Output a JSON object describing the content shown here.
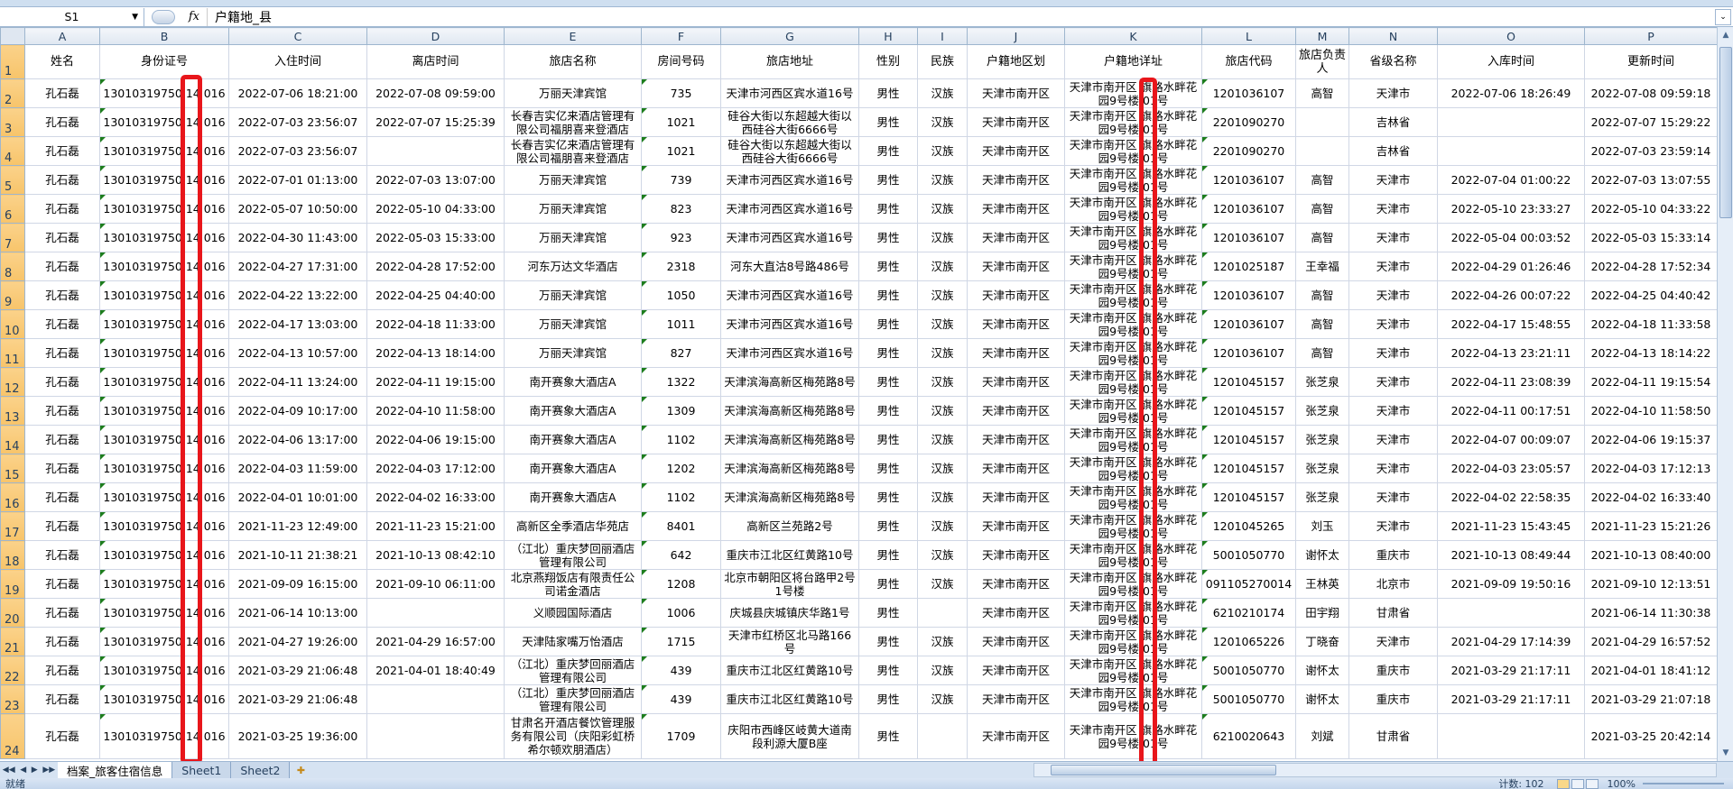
{
  "formula_bar": {
    "name_box": "S1",
    "fx_label": "fx",
    "content": "户籍地_县"
  },
  "columns": [
    "A",
    "B",
    "C",
    "D",
    "E",
    "F",
    "G",
    "H",
    "I",
    "J",
    "K",
    "L",
    "M",
    "N",
    "O",
    "P"
  ],
  "header_row": {
    "row_number": "1",
    "cells": [
      "姓名",
      "身份证号",
      "入住时间",
      "离店时间",
      "旅店名称",
      "房间号码",
      "旅店地址",
      "性别",
      "民族",
      "户籍地区划",
      "户籍地详址",
      "旅店代码",
      "旅店负责人",
      "省级名称",
      "入库时间",
      "更新时间"
    ]
  },
  "rows": [
    [
      "2",
      [
        "孔石磊",
        "13010319750 14 016",
        "2022-07-06 18:21:00",
        "2022-07-08 09:59:00",
        "万丽天津宾馆",
        "735",
        "天津市河西区宾水道16号",
        "男性",
        "汉族",
        "天津市南开区",
        "天津市南开区 旗路水畔花园9号楼 01号",
        "1201036107",
        "高智",
        "天津市",
        "2022-07-06 18:26:49",
        "2022-07-08 09:59:18"
      ]
    ],
    [
      "3",
      [
        "孔石磊",
        "13010319750 14 016",
        "2022-07-03 23:56:07",
        "2022-07-07 15:25:39",
        "长春吉实亿来酒店管理有限公司福朋喜来登酒店",
        "1021",
        "硅谷大街以东超越大街以西硅谷大街6666号",
        "男性",
        "汉族",
        "天津市南开区",
        "天津市南开区 旗路水畔花园9号楼 01号",
        "2201090270",
        "",
        "吉林省",
        "",
        "2022-07-07 15:29:22"
      ]
    ],
    [
      "4",
      [
        "孔石磊",
        "13010319750 14 016",
        "2022-07-03 23:56:07",
        "",
        "长春吉实亿来酒店管理有限公司福朋喜来登酒店",
        "1021",
        "硅谷大街以东超越大街以西硅谷大街6666号",
        "男性",
        "汉族",
        "天津市南开区",
        "天津市南开区 旗路水畔花园9号楼 01号",
        "2201090270",
        "",
        "吉林省",
        "",
        "2022-07-03 23:59:14"
      ]
    ],
    [
      "5",
      [
        "孔石磊",
        "13010319750 14 016",
        "2022-07-01 01:13:00",
        "2022-07-03 13:07:00",
        "万丽天津宾馆",
        "739",
        "天津市河西区宾水道16号",
        "男性",
        "汉族",
        "天津市南开区",
        "天津市南开区 旗路水畔花园9号楼 01号",
        "1201036107",
        "高智",
        "天津市",
        "2022-07-04 01:00:22",
        "2022-07-03 13:07:55"
      ]
    ],
    [
      "6",
      [
        "孔石磊",
        "13010319750 14 016",
        "2022-05-07 10:50:00",
        "2022-05-10 04:33:00",
        "万丽天津宾馆",
        "823",
        "天津市河西区宾水道16号",
        "男性",
        "汉族",
        "天津市南开区",
        "天津市南开区 旗路水畔花园9号楼 01号",
        "1201036107",
        "高智",
        "天津市",
        "2022-05-10 23:33:27",
        "2022-05-10 04:33:22"
      ]
    ],
    [
      "7",
      [
        "孔石磊",
        "13010319750 14 016",
        "2022-04-30 11:43:00",
        "2022-05-03 15:33:00",
        "万丽天津宾馆",
        "923",
        "天津市河西区宾水道16号",
        "男性",
        "汉族",
        "天津市南开区",
        "天津市南开区 旗路水畔花园9号楼 01号",
        "1201036107",
        "高智",
        "天津市",
        "2022-05-04 00:03:52",
        "2022-05-03 15:33:14"
      ]
    ],
    [
      "8",
      [
        "孔石磊",
        "13010319750 14 016",
        "2022-04-27 17:31:00",
        "2022-04-28 17:52:00",
        "河东万达文华酒店",
        "2318",
        "河东大直沽8号路486号",
        "男性",
        "汉族",
        "天津市南开区",
        "天津市南开区 旗路水畔花园9号楼 01号",
        "1201025187",
        "王幸福",
        "天津市",
        "2022-04-29 01:26:46",
        "2022-04-28 17:52:34"
      ]
    ],
    [
      "9",
      [
        "孔石磊",
        "13010319750 14 016",
        "2022-04-22 13:22:00",
        "2022-04-25 04:40:00",
        "万丽天津宾馆",
        "1050",
        "天津市河西区宾水道16号",
        "男性",
        "汉族",
        "天津市南开区",
        "天津市南开区 旗路水畔花园9号楼 01号",
        "1201036107",
        "高智",
        "天津市",
        "2022-04-26 00:07:22",
        "2022-04-25 04:40:42"
      ]
    ],
    [
      "10",
      [
        "孔石磊",
        "13010319750 14 016",
        "2022-04-17 13:03:00",
        "2022-04-18 11:33:00",
        "万丽天津宾馆",
        "1011",
        "天津市河西区宾水道16号",
        "男性",
        "汉族",
        "天津市南开区",
        "天津市南开区 旗路水畔花园9号楼 01号",
        "1201036107",
        "高智",
        "天津市",
        "2022-04-17 15:48:55",
        "2022-04-18 11:33:58"
      ]
    ],
    [
      "11",
      [
        "孔石磊",
        "13010319750 14 016",
        "2022-04-13 10:57:00",
        "2022-04-13 18:14:00",
        "万丽天津宾馆",
        "827",
        "天津市河西区宾水道16号",
        "男性",
        "汉族",
        "天津市南开区",
        "天津市南开区 旗路水畔花园9号楼 01号",
        "1201036107",
        "高智",
        "天津市",
        "2022-04-13 23:21:11",
        "2022-04-13 18:14:22"
      ]
    ],
    [
      "12",
      [
        "孔石磊",
        "13010319750 14 016",
        "2022-04-11 13:24:00",
        "2022-04-11 19:15:00",
        "南开赛象大酒店A",
        "1322",
        "天津滨海高新区梅苑路8号",
        "男性",
        "汉族",
        "天津市南开区",
        "天津市南开区 旗路水畔花园9号楼 01号",
        "1201045157",
        "张芝泉",
        "天津市",
        "2022-04-11 23:08:39",
        "2022-04-11 19:15:54"
      ]
    ],
    [
      "13",
      [
        "孔石磊",
        "13010319750 14 016",
        "2022-04-09 10:17:00",
        "2022-04-10 11:58:00",
        "南开赛象大酒店A",
        "1309",
        "天津滨海高新区梅苑路8号",
        "男性",
        "汉族",
        "天津市南开区",
        "天津市南开区 旗路水畔花园9号楼 01号",
        "1201045157",
        "张芝泉",
        "天津市",
        "2022-04-11 00:17:51",
        "2022-04-10 11:58:50"
      ]
    ],
    [
      "14",
      [
        "孔石磊",
        "13010319750 14 016",
        "2022-04-06 13:17:00",
        "2022-04-06 19:15:00",
        "南开赛象大酒店A",
        "1102",
        "天津滨海高新区梅苑路8号",
        "男性",
        "汉族",
        "天津市南开区",
        "天津市南开区 旗路水畔花园9号楼 01号",
        "1201045157",
        "张芝泉",
        "天津市",
        "2022-04-07 00:09:07",
        "2022-04-06 19:15:37"
      ]
    ],
    [
      "15",
      [
        "孔石磊",
        "13010319750 14 016",
        "2022-04-03 11:59:00",
        "2022-04-03 17:12:00",
        "南开赛象大酒店A",
        "1202",
        "天津滨海高新区梅苑路8号",
        "男性",
        "汉族",
        "天津市南开区",
        "天津市南开区 旗路水畔花园9号楼 01号",
        "1201045157",
        "张芝泉",
        "天津市",
        "2022-04-03 23:05:57",
        "2022-04-03 17:12:13"
      ]
    ],
    [
      "16",
      [
        "孔石磊",
        "13010319750 14 016",
        "2022-04-01 10:01:00",
        "2022-04-02 16:33:00",
        "南开赛象大酒店A",
        "1102",
        "天津滨海高新区梅苑路8号",
        "男性",
        "汉族",
        "天津市南开区",
        "天津市南开区 旗路水畔花园9号楼 01号",
        "1201045157",
        "张芝泉",
        "天津市",
        "2022-04-02 22:58:35",
        "2022-04-02 16:33:40"
      ]
    ],
    [
      "17",
      [
        "孔石磊",
        "13010319750 14 016",
        "2021-11-23 12:49:00",
        "2021-11-23 15:21:00",
        "高新区全季酒店华苑店",
        "8401",
        "高新区兰苑路2号",
        "男性",
        "汉族",
        "天津市南开区",
        "天津市南开区 旗路水畔花园9号楼 01号",
        "1201045265",
        "刘玉",
        "天津市",
        "2021-11-23 15:43:45",
        "2021-11-23 15:21:26"
      ]
    ],
    [
      "18",
      [
        "孔石磊",
        "13010319750 14 016",
        "2021-10-11 21:38:21",
        "2021-10-13 08:42:10",
        "（江北）重庆梦回丽酒店管理有限公司",
        "642",
        "重庆市江北区红黄路10号",
        "男性",
        "汉族",
        "天津市南开区",
        "天津市南开区 旗路水畔花园9号楼 01号",
        "5001050770",
        "谢怀太",
        "重庆市",
        "2021-10-13 08:49:44",
        "2021-10-13 08:40:00"
      ]
    ],
    [
      "19",
      [
        "孔石磊",
        "13010319750 14 016",
        "2021-09-09 16:15:00",
        "2021-09-10 06:11:00",
        "北京燕翔饭店有限责任公司诺金酒店",
        "1208",
        "北京市朝阳区将台路甲2号1号楼",
        "男性",
        "汉族",
        "天津市南开区",
        "天津市南开区 旗路水畔花园9号楼 01号",
        "091105270014",
        "王林英",
        "北京市",
        "2021-09-09 19:50:16",
        "2021-09-10 12:13:51"
      ]
    ],
    [
      "20",
      [
        "孔石磊",
        "13010319750 14 016",
        "2021-06-14 10:13:00",
        "",
        "义顺园国际酒店",
        "1006",
        "庆城县庆城镇庆华路1号",
        "男性",
        "",
        "天津市南开区",
        "天津市南开区 旗路水畔花园9号楼 01号",
        "6210210174",
        "田宇翔",
        "甘肃省",
        "",
        "2021-06-14 11:30:38"
      ]
    ],
    [
      "21",
      [
        "孔石磊",
        "13010319750 14 016",
        "2021-04-27 19:26:00",
        "2021-04-29 16:57:00",
        "天津陆家嘴万怡酒店",
        "1715",
        "天津市红桥区北马路166号",
        "男性",
        "汉族",
        "天津市南开区",
        "天津市南开区 旗路水畔花园9号楼 01号",
        "1201065226",
        "丁晓奋",
        "天津市",
        "2021-04-29 17:14:39",
        "2021-04-29 16:57:52"
      ]
    ],
    [
      "22",
      [
        "孔石磊",
        "13010319750 14 016",
        "2021-03-29 21:06:48",
        "2021-04-01 18:40:49",
        "（江北）重庆梦回丽酒店管理有限公司",
        "439",
        "重庆市江北区红黄路10号",
        "男性",
        "汉族",
        "天津市南开区",
        "天津市南开区 旗路水畔花园9号楼 01号",
        "5001050770",
        "谢怀太",
        "重庆市",
        "2021-03-29 21:17:11",
        "2021-04-01 18:41:12"
      ]
    ],
    [
      "23",
      [
        "孔石磊",
        "13010319750 14 016",
        "2021-03-29 21:06:48",
        "",
        "（江北）重庆梦回丽酒店管理有限公司",
        "439",
        "重庆市江北区红黄路10号",
        "男性",
        "汉族",
        "天津市南开区",
        "天津市南开区 旗路水畔花园9号楼 01号",
        "5001050770",
        "谢怀太",
        "重庆市",
        "2021-03-29 21:17:11",
        "2021-03-29 21:07:18"
      ]
    ],
    [
      "24",
      [
        "孔石磊",
        "13010319750 14 016",
        "2021-03-25 19:36:00",
        "",
        "甘肃名开酒店餐饮管理服务有限公司（庆阳彩虹桥希尔顿欢朋酒店）",
        "1709",
        "庆阳市西峰区岐黄大道南段利源大厦B座",
        "男性",
        "",
        "天津市南开区",
        "天津市南开区 旗路水畔花园9号楼 01号",
        "6210020643",
        "刘斌",
        "甘肃省",
        "",
        "2021-03-25 20:42:14"
      ]
    ]
  ],
  "sheet_tabs": [
    {
      "label": "档案_旅客住宿信息",
      "active": true
    },
    {
      "label": "Sheet1",
      "active": false
    },
    {
      "label": "Sheet2",
      "active": false
    }
  ],
  "status_bar": {
    "ready": "就绪",
    "count": "计数: 102",
    "zoom": "100%"
  },
  "colors": {
    "highlight": "#e8161b",
    "row_header": "#f7c46a",
    "error_triangle": "#1d7d1d"
  }
}
